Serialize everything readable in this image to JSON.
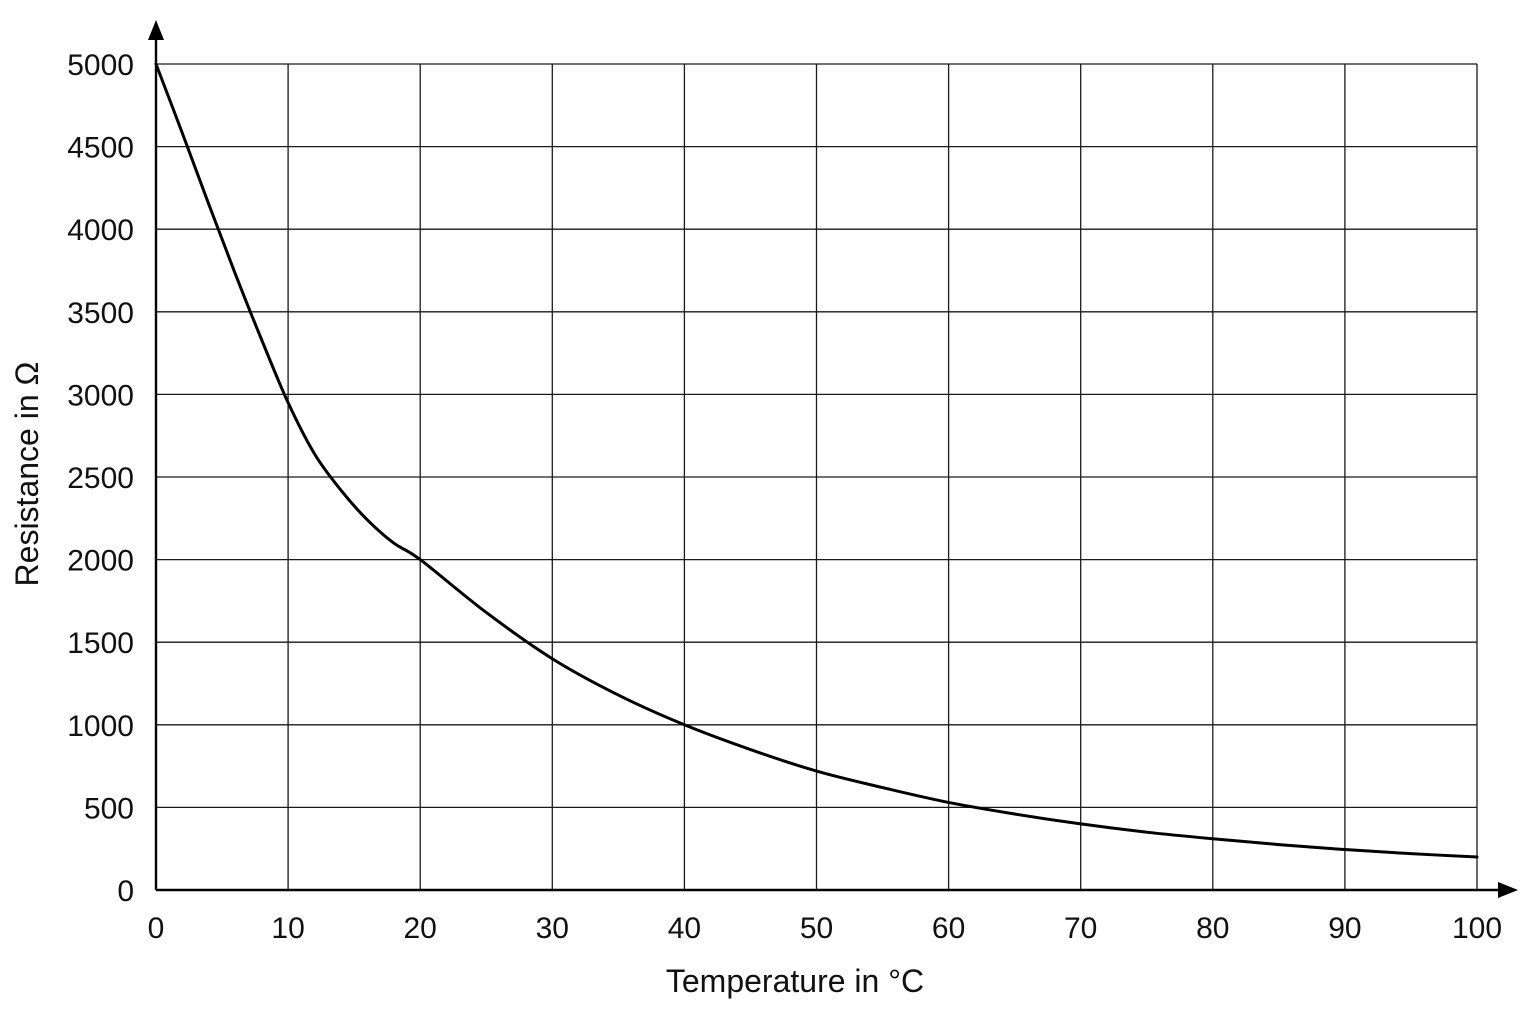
{
  "chart_data": {
    "type": "line",
    "title": "",
    "xlabel": "Temperature in °C",
    "ylabel": "Resistance in Ω",
    "xlim": [
      0,
      100
    ],
    "ylim": [
      0,
      5000
    ],
    "x_ticks": [
      0,
      10,
      20,
      30,
      40,
      50,
      60,
      70,
      80,
      90,
      100
    ],
    "y_ticks": [
      0,
      500,
      1000,
      1500,
      2000,
      2500,
      3000,
      3500,
      4000,
      4500,
      5000
    ],
    "grid": true,
    "legend": "none",
    "series": [
      {
        "color": "#000000",
        "x": [
          0,
          2,
          4,
          6,
          8,
          10,
          12,
          14,
          16,
          18,
          20,
          25,
          30,
          35,
          40,
          45,
          50,
          55,
          60,
          65,
          70,
          75,
          80,
          85,
          90,
          95,
          100
        ],
        "y": [
          5000,
          4580,
          4150,
          3730,
          3330,
          2950,
          2640,
          2420,
          2240,
          2100,
          2000,
          1680,
          1400,
          1180,
          1000,
          850,
          720,
          620,
          530,
          460,
          400,
          350,
          310,
          275,
          245,
          220,
          200
        ]
      }
    ]
  }
}
